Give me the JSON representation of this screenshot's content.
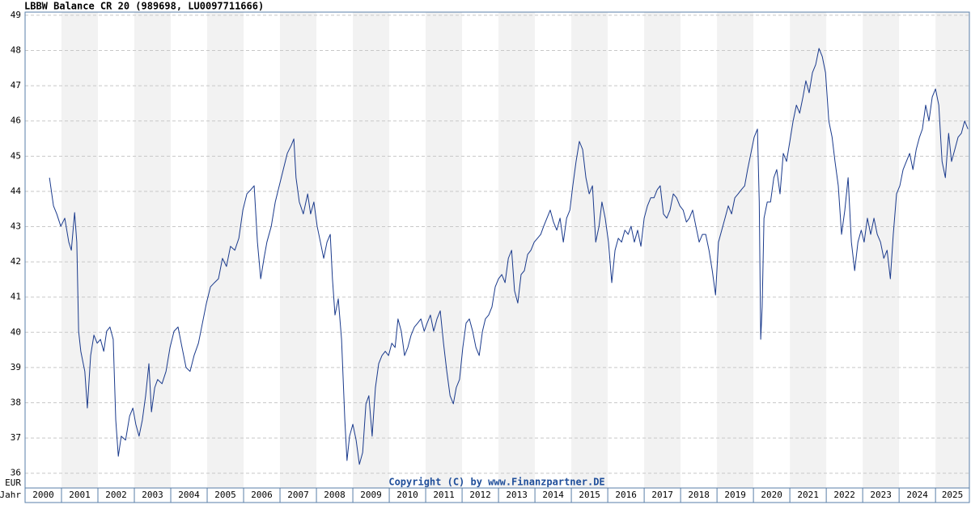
{
  "chart_data": {
    "type": "line",
    "title": "LBBW Balance CR 20 (989698, LU0097711666)",
    "ylabel": "EUR",
    "xlabel": "Jahr",
    "annotation": "Copyright (C) by www.Finanzpartner.DE",
    "xlim": [
      2000,
      2025.93
    ],
    "ylim": [
      35.58,
      49.09
    ],
    "xticks": [
      2000,
      2001,
      2002,
      2003,
      2004,
      2005,
      2006,
      2007,
      2008,
      2009,
      2010,
      2011,
      2012,
      2013,
      2014,
      2015,
      2016,
      2017,
      2018,
      2019,
      2020,
      2021,
      2022,
      2023,
      2024,
      2025
    ],
    "yticks": [
      36,
      37,
      38,
      39,
      40,
      41,
      42,
      43,
      44,
      45,
      46,
      47,
      48,
      49
    ],
    "grid": true,
    "band_color": "#f2f2f2",
    "x": [
      2000.67,
      2000.78,
      2000.87,
      2000.98,
      2001.09,
      2001.2,
      2001.27,
      2001.36,
      2001.42,
      2001.47,
      2001.53,
      2001.64,
      2001.71,
      2001.8,
      2001.89,
      2001.98,
      2002.07,
      2002.16,
      2002.24,
      2002.33,
      2002.42,
      2002.49,
      2002.56,
      2002.64,
      2002.76,
      2002.87,
      2002.96,
      2003.04,
      2003.13,
      2003.22,
      2003.31,
      2003.4,
      2003.47,
      2003.56,
      2003.64,
      2003.76,
      2003.87,
      2003.98,
      2004.09,
      2004.2,
      2004.31,
      2004.42,
      2004.53,
      2004.64,
      2004.76,
      2004.87,
      2004.98,
      2005.09,
      2005.2,
      2005.31,
      2005.42,
      2005.53,
      2005.64,
      2005.76,
      2005.87,
      2005.98,
      2006.09,
      2006.2,
      2006.29,
      2006.38,
      2006.47,
      2006.56,
      2006.64,
      2006.76,
      2006.87,
      2006.98,
      2007.09,
      2007.2,
      2007.31,
      2007.38,
      2007.44,
      2007.53,
      2007.64,
      2007.76,
      2007.84,
      2007.93,
      2008.02,
      2008.11,
      2008.2,
      2008.29,
      2008.38,
      2008.44,
      2008.51,
      2008.6,
      2008.69,
      2008.78,
      2008.84,
      2008.91,
      2009.0,
      2009.09,
      2009.18,
      2009.27,
      2009.36,
      2009.44,
      2009.53,
      2009.62,
      2009.71,
      2009.8,
      2009.89,
      2009.98,
      2010.07,
      2010.16,
      2010.24,
      2010.33,
      2010.42,
      2010.51,
      2010.6,
      2010.69,
      2010.78,
      2010.87,
      2010.96,
      2011.04,
      2011.13,
      2011.22,
      2011.31,
      2011.4,
      2011.49,
      2011.58,
      2011.67,
      2011.76,
      2011.84,
      2011.93,
      2012.02,
      2012.11,
      2012.2,
      2012.29,
      2012.38,
      2012.47,
      2012.56,
      2012.64,
      2012.73,
      2012.82,
      2012.91,
      2013.0,
      2013.09,
      2013.18,
      2013.27,
      2013.36,
      2013.44,
      2013.53,
      2013.62,
      2013.71,
      2013.8,
      2013.89,
      2013.98,
      2014.07,
      2014.16,
      2014.24,
      2014.33,
      2014.42,
      2014.51,
      2014.6,
      2014.69,
      2014.78,
      2014.87,
      2014.96,
      2015.04,
      2015.13,
      2015.22,
      2015.31,
      2015.4,
      2015.49,
      2015.58,
      2015.67,
      2015.76,
      2015.84,
      2015.93,
      2016.02,
      2016.11,
      2016.2,
      2016.29,
      2016.38,
      2016.47,
      2016.56,
      2016.64,
      2016.73,
      2016.82,
      2016.91,
      2017.0,
      2017.09,
      2017.18,
      2017.27,
      2017.36,
      2017.44,
      2017.53,
      2017.62,
      2017.71,
      2017.8,
      2017.89,
      2017.98,
      2018.07,
      2018.16,
      2018.24,
      2018.33,
      2018.42,
      2018.51,
      2018.6,
      2018.69,
      2018.78,
      2018.87,
      2018.96,
      2019.04,
      2019.13,
      2019.22,
      2019.31,
      2019.4,
      2019.49,
      2019.58,
      2019.67,
      2019.76,
      2019.84,
      2019.93,
      2020.02,
      2020.11,
      2020.16,
      2020.2,
      2020.24,
      2020.29,
      2020.38,
      2020.47,
      2020.56,
      2020.64,
      2020.73,
      2020.82,
      2020.91,
      2021.0,
      2021.09,
      2021.18,
      2021.27,
      2021.36,
      2021.44,
      2021.53,
      2021.62,
      2021.71,
      2021.8,
      2021.89,
      2021.98,
      2022.07,
      2022.16,
      2022.24,
      2022.33,
      2022.42,
      2022.51,
      2022.6,
      2022.69,
      2022.78,
      2022.87,
      2022.96,
      2023.04,
      2023.13,
      2023.22,
      2023.31,
      2023.4,
      2023.49,
      2023.58,
      2023.67,
      2023.76,
      2023.84,
      2023.93,
      2024.02,
      2024.11,
      2024.2,
      2024.29,
      2024.38,
      2024.47,
      2024.56,
      2024.64,
      2024.73,
      2024.82,
      2024.91,
      2025.0,
      2025.09,
      2025.18,
      2025.27,
      2025.36,
      2025.44,
      2025.53,
      2025.62,
      2025.71,
      2025.8,
      2025.89
    ],
    "series": [
      {
        "color": "#1a3a8c",
        "values": [
          44.39,
          43.59,
          43.36,
          43.01,
          43.24,
          42.56,
          42.33,
          43.4,
          42.56,
          40.03,
          39.46,
          38.89,
          37.85,
          39.34,
          39.92,
          39.69,
          39.8,
          39.46,
          40.03,
          40.15,
          39.8,
          37.51,
          36.48,
          37.05,
          36.94,
          37.62,
          37.85,
          37.39,
          37.05,
          37.51,
          38.2,
          39.11,
          37.74,
          38.43,
          38.66,
          38.54,
          38.89,
          39.57,
          40.03,
          40.15,
          39.57,
          39.0,
          38.89,
          39.34,
          39.69,
          40.26,
          40.83,
          41.29,
          41.41,
          41.52,
          42.1,
          41.87,
          42.44,
          42.33,
          42.67,
          43.47,
          43.93,
          44.05,
          44.16,
          42.56,
          41.52,
          42.1,
          42.56,
          43.01,
          43.7,
          44.16,
          44.62,
          45.08,
          45.31,
          45.49,
          44.39,
          43.7,
          43.36,
          43.93,
          43.36,
          43.7,
          43.01,
          42.56,
          42.1,
          42.56,
          42.78,
          41.52,
          40.49,
          40.95,
          39.8,
          37.51,
          36.36,
          37.05,
          37.39,
          36.94,
          36.25,
          36.59,
          37.97,
          38.2,
          37.05,
          38.43,
          39.11,
          39.34,
          39.46,
          39.34,
          39.69,
          39.57,
          40.38,
          40.03,
          39.34,
          39.57,
          39.92,
          40.15,
          40.26,
          40.38,
          40.03,
          40.26,
          40.49,
          40.03,
          40.38,
          40.61,
          39.69,
          38.89,
          38.2,
          37.97,
          38.43,
          38.66,
          39.57,
          40.26,
          40.38,
          40.03,
          39.57,
          39.34,
          40.03,
          40.38,
          40.49,
          40.72,
          41.29,
          41.52,
          41.64,
          41.41,
          42.1,
          42.33,
          41.18,
          40.83,
          41.64,
          41.75,
          42.21,
          42.33,
          42.56,
          42.67,
          42.78,
          43.01,
          43.24,
          43.47,
          43.13,
          42.9,
          43.24,
          42.56,
          43.24,
          43.47,
          44.16,
          44.85,
          45.42,
          45.19,
          44.39,
          43.93,
          44.16,
          42.56,
          43.01,
          43.7,
          43.24,
          42.56,
          41.41,
          42.33,
          42.67,
          42.56,
          42.9,
          42.78,
          43.01,
          42.56,
          42.9,
          42.44,
          43.24,
          43.59,
          43.82,
          43.82,
          44.05,
          44.16,
          43.36,
          43.24,
          43.47,
          43.93,
          43.82,
          43.59,
          43.47,
          43.13,
          43.24,
          43.47,
          43.01,
          42.56,
          42.78,
          42.78,
          42.33,
          41.75,
          41.06,
          42.56,
          42.9,
          43.24,
          43.59,
          43.36,
          43.82,
          43.93,
          44.05,
          44.16,
          44.62,
          45.08,
          45.54,
          45.77,
          43.7,
          39.8,
          40.72,
          43.24,
          43.7,
          43.7,
          44.39,
          44.62,
          43.93,
          45.08,
          44.85,
          45.42,
          46.0,
          46.45,
          46.22,
          46.68,
          47.14,
          46.8,
          47.37,
          47.6,
          48.06,
          47.83,
          47.37,
          46.0,
          45.54,
          44.85,
          44.16,
          42.78,
          43.47,
          44.39,
          42.56,
          41.75,
          42.56,
          42.9,
          42.56,
          43.24,
          42.78,
          43.24,
          42.78,
          42.56,
          42.1,
          42.33,
          41.52,
          42.78,
          43.93,
          44.16,
          44.62,
          44.85,
          45.08,
          44.62,
          45.19,
          45.54,
          45.77,
          46.45,
          46.0,
          46.68,
          46.91,
          46.45,
          44.85,
          44.39,
          45.65,
          44.85,
          45.19,
          45.54,
          45.65,
          46.0,
          45.77
        ]
      }
    ]
  }
}
